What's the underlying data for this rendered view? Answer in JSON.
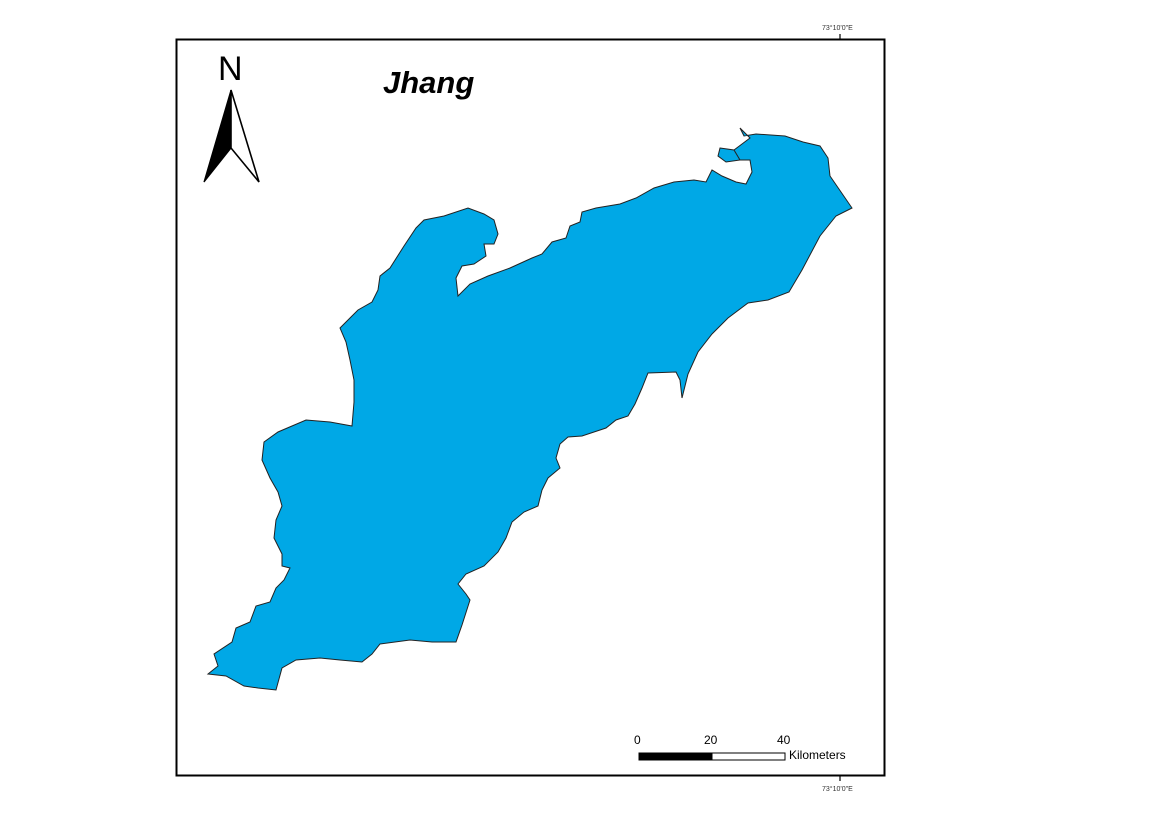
{
  "map": {
    "title": "Jhang",
    "region_fill_color": "#00a8e6",
    "region_stroke_color": "#222222",
    "frame_color": "#000000",
    "background_color": "#ffffff"
  },
  "graticule": {
    "top_label": "73°10'0\"E",
    "bottom_label": "73°10'0\"E"
  },
  "north_arrow": {
    "letter": "N",
    "icon": "north-arrow-icon"
  },
  "scale_bar": {
    "labels": [
      "0",
      "20",
      "40"
    ],
    "unit": "Kilometers"
  }
}
